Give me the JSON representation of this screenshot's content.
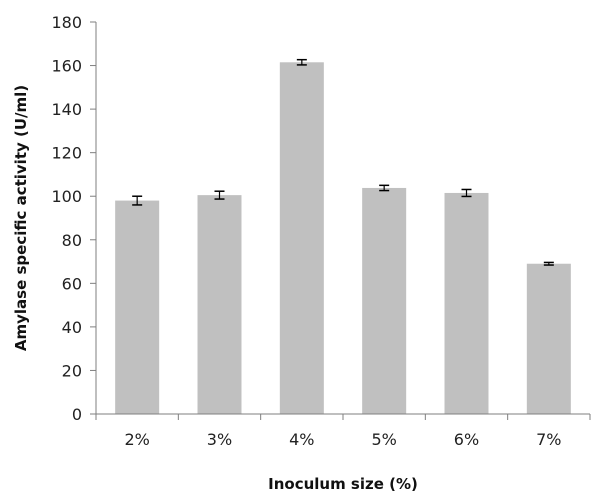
{
  "chart_data": {
    "type": "bar",
    "categories": [
      "2%",
      "3%",
      "4%",
      "5%",
      "6%",
      "7%"
    ],
    "series": [
      {
        "values": [
          98,
          100.5,
          161.5,
          103.8,
          101.5,
          69
        ],
        "errors": [
          2,
          1.8,
          1.2,
          1.2,
          1.6,
          0.6
        ],
        "color": "#c0c0c0"
      }
    ],
    "title": "",
    "xlabel": "Inoculum size (%)",
    "ylabel": "Amylase specific activity (U/ml)",
    "ylim": [
      0,
      180
    ],
    "yticks": [
      0,
      20,
      40,
      60,
      80,
      100,
      120,
      140,
      160,
      180
    ],
    "grid": false,
    "legend": "none",
    "error_bars": true
  }
}
